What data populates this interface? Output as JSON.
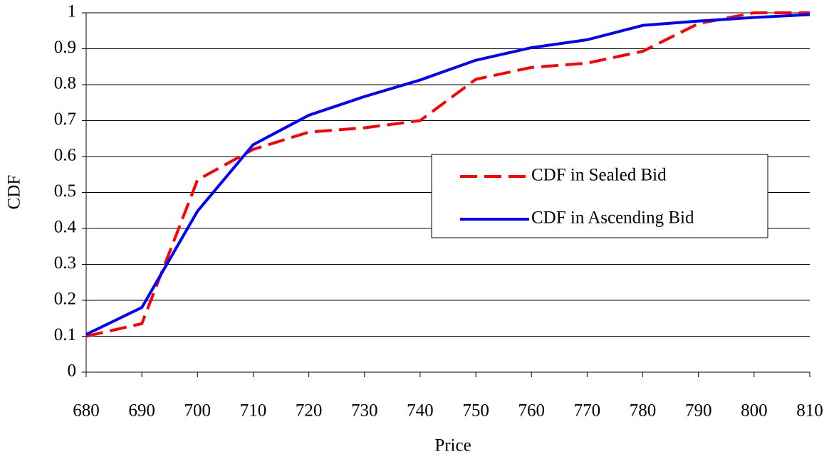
{
  "chart_data": {
    "type": "line",
    "x_label": "Price",
    "y_label": "CDF",
    "x": [
      680,
      690,
      700,
      710,
      720,
      730,
      740,
      750,
      760,
      770,
      780,
      790,
      800,
      810
    ],
    "series": [
      {
        "name": "CDF in Sealed Bid",
        "color": "#ff0000",
        "dashed": true,
        "values": [
          0.1,
          0.135,
          0.535,
          0.62,
          0.668,
          0.68,
          0.7,
          0.815,
          0.848,
          0.86,
          0.893,
          0.97,
          1.0,
          1.0
        ]
      },
      {
        "name": "CDF in Ascending Bid",
        "color": "#0000ff",
        "dashed": false,
        "values": [
          0.105,
          0.18,
          0.448,
          0.633,
          0.715,
          0.767,
          0.813,
          0.868,
          0.903,
          0.925,
          0.965,
          0.977,
          0.987,
          0.995
        ]
      }
    ],
    "xlim": [
      680,
      810
    ],
    "xticks": [
      680,
      690,
      700,
      710,
      720,
      730,
      740,
      750,
      760,
      770,
      780,
      790,
      800,
      810
    ],
    "ylim": [
      0,
      1
    ],
    "yticks": [
      0,
      0.1,
      0.2,
      0.3,
      0.4,
      0.5,
      0.6,
      0.7,
      0.8,
      0.9,
      1
    ],
    "grid": true,
    "legend_position": "center right"
  }
}
